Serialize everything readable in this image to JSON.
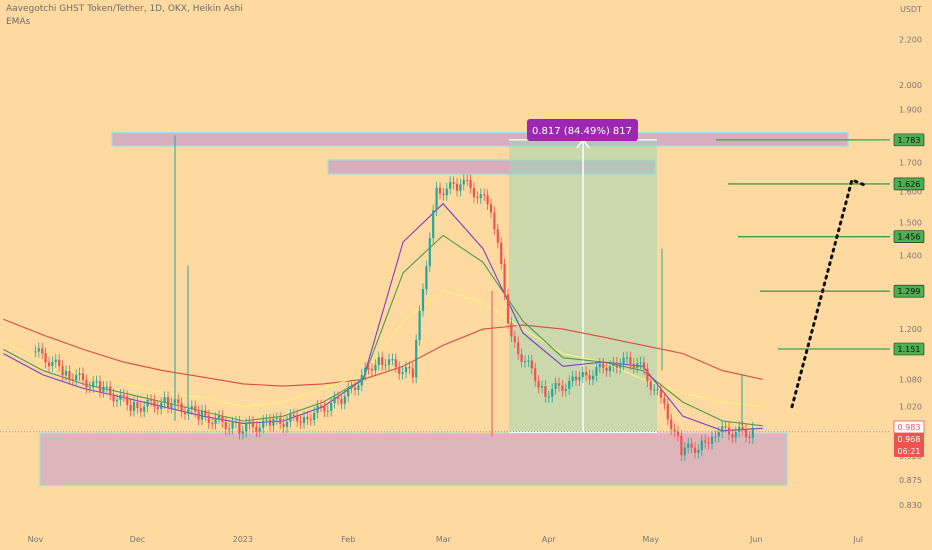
{
  "header": {
    "title": "Aavegotchi GHST Token/Tether, 1D, OKX, Heikin Ashi",
    "indicator": "EMAs"
  },
  "chart_data": {
    "type": "line",
    "title": "Aavegotchi GHST Token/Tether, 1D, OKX, Heikin Ashi",
    "ylabel": "USDT",
    "y_scale": "log",
    "ylim": [
      0.81,
      2.35
    ],
    "x_ticks": [
      "Nov",
      "Dec",
      "2023",
      "Feb",
      "Mar",
      "Apr",
      "May",
      "Jun",
      "Jul"
    ],
    "y_ticks": [
      "2.200",
      "2.000",
      "1.900",
      "1.700",
      "1.600",
      "1.500",
      "1.400",
      "1.200",
      "1.080",
      "1.020",
      "0.920",
      "0.875",
      "0.830"
    ],
    "price_series": {
      "name": "GHST/USDT",
      "x": [
        "2022-11-01",
        "2022-11-10",
        "2022-11-20",
        "2022-11-30",
        "2022-12-10",
        "2022-12-20",
        "2022-12-31",
        "2023-01-10",
        "2023-01-20",
        "2023-01-31",
        "2023-02-10",
        "2023-02-20",
        "2023-02-27",
        "2023-03-05",
        "2023-03-08",
        "2023-03-15",
        "2023-03-21",
        "2023-03-31",
        "2023-04-10",
        "2023-04-20",
        "2023-04-27",
        "2023-05-05",
        "2023-05-10",
        "2023-05-16",
        "2023-05-20",
        "2023-05-31"
      ],
      "close": [
        1.145,
        1.095,
        1.06,
        1.02,
        1.03,
        1.0,
        0.975,
        0.985,
        1.0,
        1.04,
        1.13,
        1.09,
        1.6,
        1.62,
        1.62,
        1.55,
        1.17,
        1.05,
        1.08,
        1.12,
        1.12,
        1.02,
        0.93,
        0.94,
        0.97,
        0.965
      ]
    },
    "ema_series": [
      {
        "color": "#e0473f",
        "y": [
          1.225,
          1.185,
          1.15,
          1.12,
          1.1,
          1.085,
          1.07,
          1.065,
          1.07,
          1.08,
          1.11,
          1.16,
          1.2,
          1.21,
          1.2,
          1.18,
          1.16,
          1.14,
          1.1,
          1.08
        ]
      },
      {
        "color": "#fff27a",
        "y": [
          1.17,
          1.12,
          1.09,
          1.07,
          1.05,
          1.04,
          1.02,
          1.03,
          1.06,
          1.09,
          1.22,
          1.3,
          1.27,
          1.2,
          1.14,
          1.12,
          1.08,
          1.05,
          1.03,
          1.02
        ]
      },
      {
        "color": "#4c9a4e",
        "y": [
          1.15,
          1.1,
          1.07,
          1.05,
          1.03,
          1.01,
          0.99,
          1.0,
          1.03,
          1.08,
          1.35,
          1.46,
          1.38,
          1.22,
          1.13,
          1.12,
          1.1,
          1.03,
          0.99,
          0.98
        ]
      },
      {
        "color": "#7b3fc4",
        "y": [
          1.14,
          1.09,
          1.06,
          1.04,
          1.02,
          1.0,
          0.985,
          0.99,
          1.02,
          1.08,
          1.44,
          1.56,
          1.42,
          1.19,
          1.11,
          1.12,
          1.11,
          1.0,
          0.97,
          0.975
        ]
      }
    ],
    "zones": [
      {
        "type": "resistance",
        "from": 1.76,
        "to": 1.81
      },
      {
        "type": "resistance",
        "from": 1.66,
        "to": 1.71
      },
      {
        "type": "support",
        "from": 0.865,
        "to": 0.965
      }
    ],
    "measure": {
      "label": "0.817 (84.49%) 817",
      "from": 0.967,
      "to": 1.783
    },
    "targets": [
      {
        "label": "1.783",
        "value": 1.783
      },
      {
        "label": "1.626",
        "value": 1.626
      },
      {
        "label": "1.456",
        "value": 1.456
      },
      {
        "label": "1.299",
        "value": 1.299
      },
      {
        "label": "1.151",
        "value": 1.151
      }
    ],
    "current_price_labels": [
      {
        "label": "0.983",
        "value": 0.983
      },
      {
        "label": "0.968",
        "value": 0.968
      },
      {
        "label": "06:21",
        "value": 0.958
      }
    ],
    "projection": {
      "from": 1.02,
      "to": 1.64,
      "end": 1.62
    }
  }
}
